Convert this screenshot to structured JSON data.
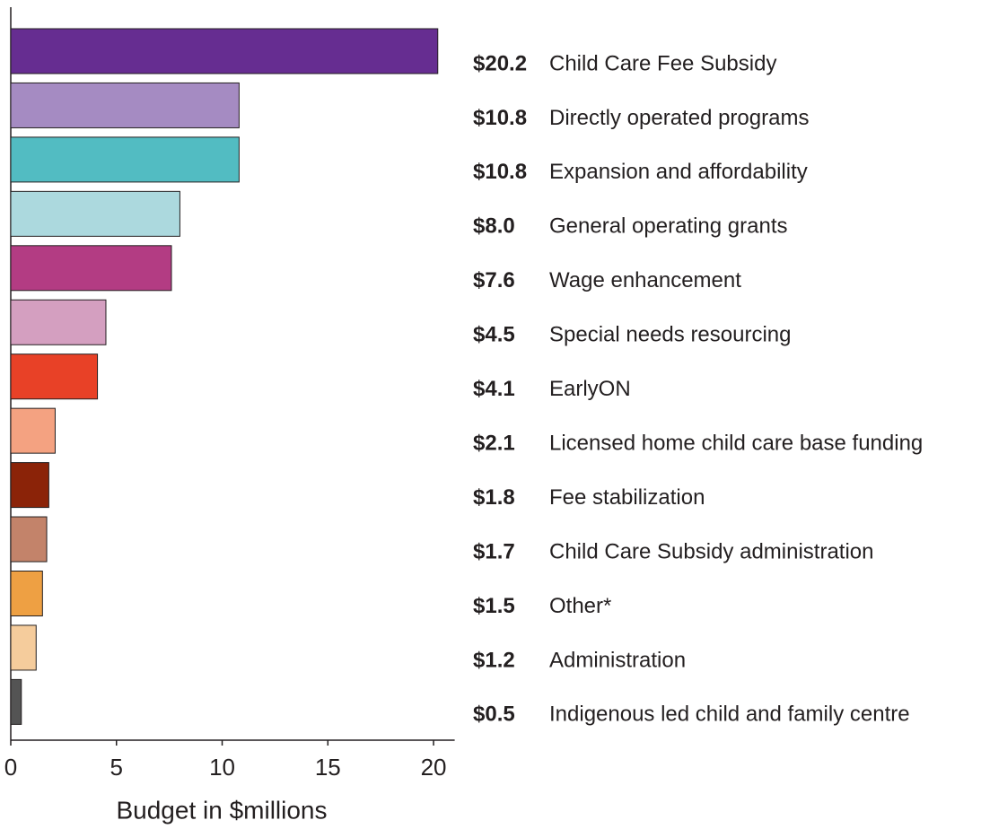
{
  "chart_data": {
    "type": "bar",
    "orientation": "horizontal",
    "x_label": "Budget in $millions",
    "categories": [
      "Child Care Fee Subsidy",
      "Directly operated programs",
      "Expansion and affordability",
      "General operating grants",
      "Wage enhancement",
      "Special needs resourcing",
      "EarlyON",
      "Licensed home child care base funding",
      "Fee stabilization",
      "Child Care Subsidy administration",
      "Other*",
      "Administration",
      "Indigenous led child and family centre"
    ],
    "values": [
      20.2,
      10.8,
      10.8,
      8.0,
      7.6,
      4.5,
      4.1,
      2.1,
      1.8,
      1.7,
      1.5,
      1.2,
      0.5
    ],
    "value_labels": [
      "$20.2",
      "$10.8",
      "$10.8",
      "$8.0",
      "$7.6",
      "$4.5",
      "$4.1",
      "$2.1",
      "$1.8",
      "$1.7",
      "$1.5",
      "$1.2",
      "$0.5"
    ],
    "colors": [
      "#662d91",
      "#a58bc2",
      "#52bcc2",
      "#acd9de",
      "#b33c83",
      "#d49fc0",
      "#e84127",
      "#f4a281",
      "#8b2308",
      "#c3836a",
      "#eea043",
      "#f5cc9c",
      "#545454"
    ],
    "xlim": [
      0,
      21
    ],
    "xticks": [
      0,
      5,
      10,
      15,
      20
    ]
  }
}
